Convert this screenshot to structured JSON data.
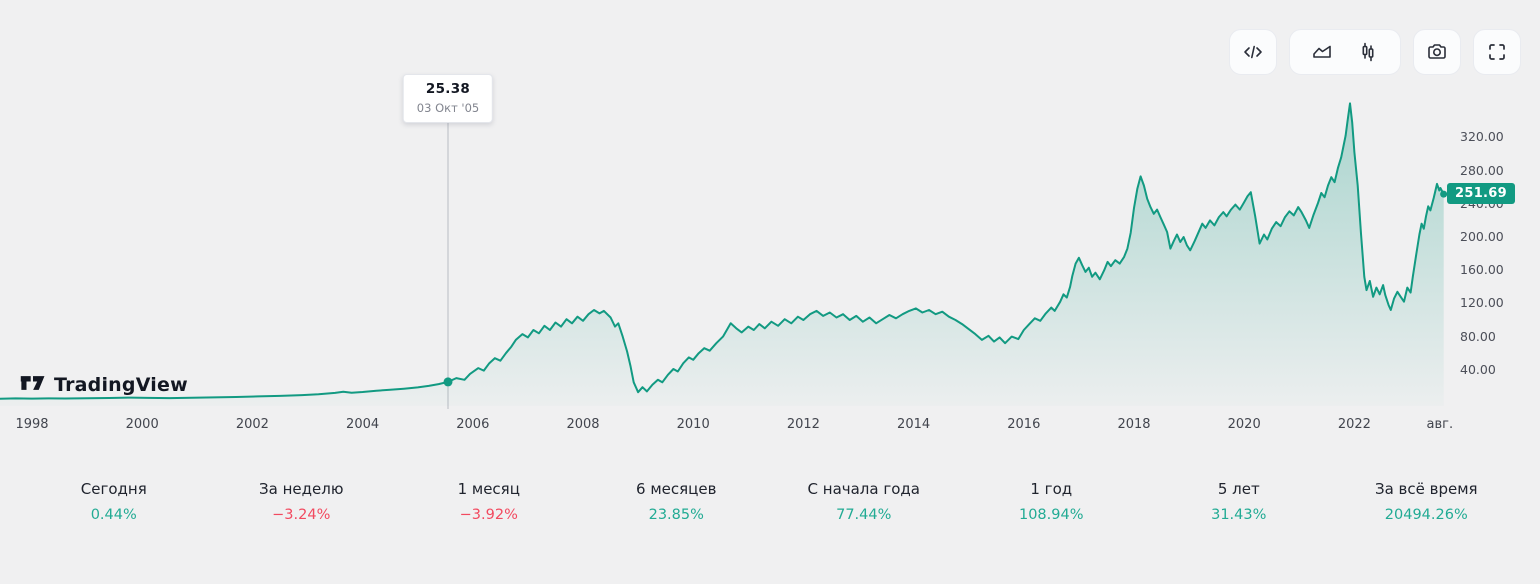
{
  "colors": {
    "accent": "#129a82",
    "up": "#22ab94",
    "down": "#f24a60",
    "crosshair": "#b8bbc2"
  },
  "toolbar": {
    "buttons": [
      {
        "name": "embed-code-button",
        "icon": "code-icon"
      },
      {
        "name": "chart-style-group",
        "icons": [
          "area-chart-icon",
          "candlestick-icon"
        ]
      },
      {
        "name": "snapshot-button",
        "icon": "camera-icon"
      },
      {
        "name": "fullscreen-button",
        "icon": "fullscreen-icon"
      }
    ]
  },
  "logo": {
    "text": "TradingView"
  },
  "tooltip": {
    "price": "25.38",
    "date": "03 Окт '05"
  },
  "chart_data": {
    "type": "area",
    "line_color": "#129a82",
    "ylim": [
      0,
      380
    ],
    "x_range_years": [
      1997.42,
      2023.62
    ],
    "grid": false,
    "legend": false,
    "y_ticks": [
      {
        "label": "320.00",
        "value": 320
      },
      {
        "label": "280.00",
        "value": 280
      },
      {
        "label": "240.00",
        "value": 240
      },
      {
        "label": "200.00",
        "value": 200
      },
      {
        "label": "160.00",
        "value": 160
      },
      {
        "label": "120.00",
        "value": 120
      },
      {
        "label": "80.00",
        "value": 80
      },
      {
        "label": "40.00",
        "value": 40
      }
    ],
    "x_ticks": [
      {
        "label": "1998",
        "year": 1998
      },
      {
        "label": "2000",
        "year": 2000
      },
      {
        "label": "2002",
        "year": 2002
      },
      {
        "label": "2004",
        "year": 2004
      },
      {
        "label": "2006",
        "year": 2006
      },
      {
        "label": "2008",
        "year": 2008
      },
      {
        "label": "2010",
        "year": 2010
      },
      {
        "label": "2012",
        "year": 2012
      },
      {
        "label": "2014",
        "year": 2014
      },
      {
        "label": "2016",
        "year": 2016
      },
      {
        "label": "2018",
        "year": 2018
      },
      {
        "label": "2020",
        "year": 2020
      },
      {
        "label": "2022",
        "year": 2022
      },
      {
        "label": "авг.",
        "year": 2023.55
      }
    ],
    "marker": {
      "year": 2005.55,
      "value": 25.38
    },
    "last_price": 251.69,
    "last_price_label": "251.69",
    "series": [
      [
        1997.42,
        5.2
      ],
      [
        1997.7,
        5.5
      ],
      [
        1998.0,
        5.3
      ],
      [
        1998.3,
        5.6
      ],
      [
        1998.6,
        5.4
      ],
      [
        1999.0,
        5.8
      ],
      [
        1999.4,
        6.0
      ],
      [
        1999.8,
        6.5
      ],
      [
        2000.1,
        6.1
      ],
      [
        2000.5,
        5.9
      ],
      [
        2000.9,
        6.3
      ],
      [
        2001.3,
        6.7
      ],
      [
        2001.7,
        7.2
      ],
      [
        2002.1,
        7.9
      ],
      [
        2002.5,
        8.6
      ],
      [
        2002.9,
        9.5
      ],
      [
        2003.2,
        10.6
      ],
      [
        2003.5,
        12.2
      ],
      [
        2003.65,
        13.6
      ],
      [
        2003.8,
        12.4
      ],
      [
        2004.0,
        13.3
      ],
      [
        2004.25,
        14.7
      ],
      [
        2004.5,
        16.0
      ],
      [
        2004.75,
        17.2
      ],
      [
        2005.0,
        18.8
      ],
      [
        2005.2,
        20.6
      ],
      [
        2005.38,
        22.8
      ],
      [
        2005.55,
        25.38
      ],
      [
        2005.7,
        30
      ],
      [
        2005.85,
        28
      ],
      [
        2005.95,
        35
      ],
      [
        2006.1,
        42
      ],
      [
        2006.2,
        39
      ],
      [
        2006.3,
        48
      ],
      [
        2006.4,
        54
      ],
      [
        2006.5,
        51
      ],
      [
        2006.6,
        60
      ],
      [
        2006.7,
        68
      ],
      [
        2006.78,
        76
      ],
      [
        2006.9,
        83
      ],
      [
        2007.0,
        79
      ],
      [
        2007.1,
        88
      ],
      [
        2007.2,
        84
      ],
      [
        2007.3,
        93
      ],
      [
        2007.4,
        88
      ],
      [
        2007.5,
        97
      ],
      [
        2007.6,
        92
      ],
      [
        2007.7,
        101
      ],
      [
        2007.8,
        96
      ],
      [
        2007.9,
        104
      ],
      [
        2008.0,
        99
      ],
      [
        2008.1,
        107
      ],
      [
        2008.2,
        112
      ],
      [
        2008.3,
        108
      ],
      [
        2008.38,
        111
      ],
      [
        2008.5,
        103
      ],
      [
        2008.58,
        92
      ],
      [
        2008.64,
        96
      ],
      [
        2008.72,
        80
      ],
      [
        2008.8,
        62
      ],
      [
        2008.86,
        45
      ],
      [
        2008.92,
        25
      ],
      [
        2009.0,
        13
      ],
      [
        2009.08,
        19
      ],
      [
        2009.16,
        14
      ],
      [
        2009.26,
        22
      ],
      [
        2009.36,
        28
      ],
      [
        2009.44,
        25
      ],
      [
        2009.54,
        34
      ],
      [
        2009.64,
        41
      ],
      [
        2009.72,
        38
      ],
      [
        2009.82,
        48
      ],
      [
        2009.92,
        55
      ],
      [
        2010.0,
        52
      ],
      [
        2010.1,
        60
      ],
      [
        2010.2,
        66
      ],
      [
        2010.3,
        63
      ],
      [
        2010.42,
        72
      ],
      [
        2010.54,
        80
      ],
      [
        2010.68,
        96
      ],
      [
        2010.78,
        90
      ],
      [
        2010.88,
        85
      ],
      [
        2011.0,
        92
      ],
      [
        2011.1,
        88
      ],
      [
        2011.2,
        95
      ],
      [
        2011.3,
        90
      ],
      [
        2011.42,
        98
      ],
      [
        2011.54,
        93
      ],
      [
        2011.66,
        101
      ],
      [
        2011.78,
        96
      ],
      [
        2011.9,
        104
      ],
      [
        2012.0,
        100
      ],
      [
        2012.12,
        107
      ],
      [
        2012.24,
        111
      ],
      [
        2012.36,
        105
      ],
      [
        2012.48,
        109
      ],
      [
        2012.6,
        103
      ],
      [
        2012.72,
        107
      ],
      [
        2012.84,
        100
      ],
      [
        2012.96,
        105
      ],
      [
        2013.08,
        98
      ],
      [
        2013.2,
        103
      ],
      [
        2013.32,
        96
      ],
      [
        2013.44,
        101
      ],
      [
        2013.56,
        106
      ],
      [
        2013.68,
        102
      ],
      [
        2013.8,
        107
      ],
      [
        2013.92,
        111
      ],
      [
        2014.04,
        114
      ],
      [
        2014.16,
        109
      ],
      [
        2014.28,
        112
      ],
      [
        2014.4,
        107
      ],
      [
        2014.52,
        110
      ],
      [
        2014.64,
        104
      ],
      [
        2014.76,
        100
      ],
      [
        2014.88,
        95
      ],
      [
        2015.0,
        89
      ],
      [
        2015.12,
        83
      ],
      [
        2015.24,
        76
      ],
      [
        2015.36,
        81
      ],
      [
        2015.46,
        74
      ],
      [
        2015.56,
        79
      ],
      [
        2015.66,
        72
      ],
      [
        2015.78,
        80
      ],
      [
        2015.9,
        77
      ],
      [
        2016.0,
        88
      ],
      [
        2016.1,
        95
      ],
      [
        2016.2,
        102
      ],
      [
        2016.3,
        99
      ],
      [
        2016.4,
        108
      ],
      [
        2016.5,
        115
      ],
      [
        2016.56,
        111
      ],
      [
        2016.66,
        122
      ],
      [
        2016.72,
        131
      ],
      [
        2016.78,
        127
      ],
      [
        2016.84,
        140
      ],
      [
        2016.88,
        153
      ],
      [
        2016.94,
        168
      ],
      [
        2017.0,
        175
      ],
      [
        2017.06,
        166
      ],
      [
        2017.12,
        158
      ],
      [
        2017.18,
        163
      ],
      [
        2017.24,
        152
      ],
      [
        2017.3,
        157
      ],
      [
        2017.38,
        149
      ],
      [
        2017.46,
        160
      ],
      [
        2017.52,
        170
      ],
      [
        2017.58,
        165
      ],
      [
        2017.66,
        172
      ],
      [
        2017.74,
        168
      ],
      [
        2017.82,
        176
      ],
      [
        2017.88,
        186
      ],
      [
        2017.94,
        205
      ],
      [
        2018.0,
        235
      ],
      [
        2018.06,
        258
      ],
      [
        2018.12,
        273
      ],
      [
        2018.18,
        262
      ],
      [
        2018.24,
        246
      ],
      [
        2018.3,
        236
      ],
      [
        2018.36,
        228
      ],
      [
        2018.42,
        233
      ],
      [
        2018.48,
        224
      ],
      [
        2018.54,
        215
      ],
      [
        2018.6,
        206
      ],
      [
        2018.66,
        186
      ],
      [
        2018.72,
        195
      ],
      [
        2018.78,
        203
      ],
      [
        2018.84,
        194
      ],
      [
        2018.9,
        200
      ],
      [
        2018.96,
        190
      ],
      [
        2019.02,
        184
      ],
      [
        2019.1,
        195
      ],
      [
        2019.18,
        207
      ],
      [
        2019.24,
        216
      ],
      [
        2019.3,
        211
      ],
      [
        2019.38,
        220
      ],
      [
        2019.46,
        214
      ],
      [
        2019.54,
        224
      ],
      [
        2019.62,
        230
      ],
      [
        2019.68,
        225
      ],
      [
        2019.76,
        233
      ],
      [
        2019.84,
        239
      ],
      [
        2019.92,
        233
      ],
      [
        2020.0,
        242
      ],
      [
        2020.06,
        249
      ],
      [
        2020.12,
        254
      ],
      [
        2020.2,
        225
      ],
      [
        2020.28,
        192
      ],
      [
        2020.36,
        203
      ],
      [
        2020.42,
        197
      ],
      [
        2020.5,
        210
      ],
      [
        2020.58,
        218
      ],
      [
        2020.66,
        213
      ],
      [
        2020.74,
        224
      ],
      [
        2020.82,
        231
      ],
      [
        2020.9,
        226
      ],
      [
        2020.98,
        236
      ],
      [
        2021.04,
        230
      ],
      [
        2021.12,
        220
      ],
      [
        2021.18,
        211
      ],
      [
        2021.26,
        227
      ],
      [
        2021.34,
        241
      ],
      [
        2021.4,
        253
      ],
      [
        2021.46,
        248
      ],
      [
        2021.52,
        262
      ],
      [
        2021.58,
        272
      ],
      [
        2021.64,
        266
      ],
      [
        2021.7,
        283
      ],
      [
        2021.76,
        296
      ],
      [
        2021.8,
        309
      ],
      [
        2021.84,
        322
      ],
      [
        2021.88,
        342
      ],
      [
        2021.92,
        361
      ],
      [
        2021.96,
        338
      ],
      [
        2022.0,
        302
      ],
      [
        2022.06,
        262
      ],
      [
        2022.12,
        204
      ],
      [
        2022.18,
        152
      ],
      [
        2022.22,
        136
      ],
      [
        2022.28,
        147
      ],
      [
        2022.34,
        128
      ],
      [
        2022.4,
        139
      ],
      [
        2022.46,
        131
      ],
      [
        2022.52,
        142
      ],
      [
        2022.56,
        130
      ],
      [
        2022.62,
        118
      ],
      [
        2022.66,
        112
      ],
      [
        2022.72,
        126
      ],
      [
        2022.78,
        134
      ],
      [
        2022.84,
        128
      ],
      [
        2022.9,
        122
      ],
      [
        2022.96,
        139
      ],
      [
        2023.02,
        133
      ],
      [
        2023.06,
        152
      ],
      [
        2023.12,
        178
      ],
      [
        2023.18,
        203
      ],
      [
        2023.22,
        216
      ],
      [
        2023.26,
        210
      ],
      [
        2023.3,
        225
      ],
      [
        2023.34,
        237
      ],
      [
        2023.38,
        232
      ],
      [
        2023.44,
        247
      ],
      [
        2023.5,
        264
      ],
      [
        2023.54,
        256
      ],
      [
        2023.56,
        259
      ],
      [
        2023.62,
        251.69
      ]
    ]
  },
  "stats": {
    "items": [
      {
        "id": "today",
        "label": "Сегодня",
        "value": "0.44%",
        "direction": "up"
      },
      {
        "id": "week",
        "label": "За неделю",
        "value": "−3.24%",
        "direction": "down"
      },
      {
        "id": "1m",
        "label": "1 месяц",
        "value": "−3.92%",
        "direction": "down"
      },
      {
        "id": "6m",
        "label": "6 месяцев",
        "value": "23.85%",
        "direction": "up"
      },
      {
        "id": "ytd",
        "label": "С начала года",
        "value": "77.44%",
        "direction": "up"
      },
      {
        "id": "1y",
        "label": "1 год",
        "value": "108.94%",
        "direction": "up"
      },
      {
        "id": "5y",
        "label": "5 лет",
        "value": "31.43%",
        "direction": "up"
      },
      {
        "id": "all",
        "label": "За всё время",
        "value": "20494.26%",
        "direction": "up"
      }
    ]
  }
}
